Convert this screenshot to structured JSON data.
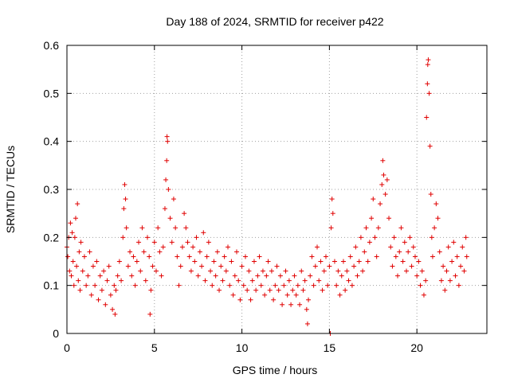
{
  "chart_data": {
    "type": "scatter",
    "title": "Day 188 of 2024, SRMTID for receiver p422",
    "xlabel": "GPS time / hours",
    "ylabel": "SRMTID / TECUs",
    "xlim": [
      0,
      24
    ],
    "ylim": [
      0,
      0.6
    ],
    "xticks": [
      0,
      5,
      10,
      15,
      20
    ],
    "yticks": [
      0,
      0.1,
      0.2,
      0.3,
      0.4,
      0.5,
      0.6
    ],
    "xtick_labels": [
      "0",
      "5",
      "10",
      "15",
      "20"
    ],
    "ytick_labels": [
      "0",
      "0.1",
      "0.2",
      "0.3",
      "0.4",
      "0.5",
      "0.6"
    ],
    "grid": true,
    "marker": "+",
    "color": "#e00000",
    "series": [
      {
        "name": "SRMTID",
        "points": [
          [
            0.0,
            0.18
          ],
          [
            0.05,
            0.16
          ],
          [
            0.1,
            0.2
          ],
          [
            0.15,
            0.13
          ],
          [
            0.2,
            0.23
          ],
          [
            0.25,
            0.12
          ],
          [
            0.3,
            0.21
          ],
          [
            0.35,
            0.15
          ],
          [
            0.4,
            0.1
          ],
          [
            0.45,
            0.2
          ],
          [
            0.5,
            0.24
          ],
          [
            0.55,
            0.14
          ],
          [
            0.6,
            0.27
          ],
          [
            0.65,
            0.11
          ],
          [
            0.7,
            0.17
          ],
          [
            0.75,
            0.09
          ],
          [
            0.8,
            0.19
          ],
          [
            0.9,
            0.13
          ],
          [
            1.0,
            0.16
          ],
          [
            1.1,
            0.1
          ],
          [
            1.2,
            0.12
          ],
          [
            1.3,
            0.17
          ],
          [
            1.4,
            0.08
          ],
          [
            1.5,
            0.14
          ],
          [
            1.6,
            0.1
          ],
          [
            1.7,
            0.15
          ],
          [
            1.8,
            0.07
          ],
          [
            1.9,
            0.12
          ],
          [
            2.0,
            0.09
          ],
          [
            2.1,
            0.13
          ],
          [
            2.2,
            0.06
          ],
          [
            2.3,
            0.11
          ],
          [
            2.4,
            0.14
          ],
          [
            2.5,
            0.08
          ],
          [
            2.6,
            0.05
          ],
          [
            2.7,
            0.1
          ],
          [
            2.75,
            0.04
          ],
          [
            2.8,
            0.09
          ],
          [
            2.9,
            0.12
          ],
          [
            3.0,
            0.15
          ],
          [
            3.1,
            0.11
          ],
          [
            3.2,
            0.2
          ],
          [
            3.25,
            0.26
          ],
          [
            3.3,
            0.31
          ],
          [
            3.35,
            0.28
          ],
          [
            3.4,
            0.22
          ],
          [
            3.5,
            0.14
          ],
          [
            3.6,
            0.17
          ],
          [
            3.7,
            0.12
          ],
          [
            3.8,
            0.16
          ],
          [
            3.9,
            0.1
          ],
          [
            4.0,
            0.15
          ],
          [
            4.1,
            0.19
          ],
          [
            4.2,
            0.13
          ],
          [
            4.3,
            0.22
          ],
          [
            4.4,
            0.17
          ],
          [
            4.5,
            0.11
          ],
          [
            4.6,
            0.2
          ],
          [
            4.7,
            0.16
          ],
          [
            4.75,
            0.04
          ],
          [
            4.8,
            0.09
          ],
          [
            4.9,
            0.14
          ],
          [
            5.0,
            0.19
          ],
          [
            5.1,
            0.13
          ],
          [
            5.2,
            0.22
          ],
          [
            5.3,
            0.17
          ],
          [
            5.4,
            0.12
          ],
          [
            5.5,
            0.18
          ],
          [
            5.6,
            0.26
          ],
          [
            5.65,
            0.32
          ],
          [
            5.7,
            0.36
          ],
          [
            5.72,
            0.41
          ],
          [
            5.75,
            0.4
          ],
          [
            5.8,
            0.3
          ],
          [
            5.9,
            0.24
          ],
          [
            6.0,
            0.19
          ],
          [
            6.1,
            0.28
          ],
          [
            6.2,
            0.22
          ],
          [
            6.3,
            0.16
          ],
          [
            6.4,
            0.1
          ],
          [
            6.5,
            0.14
          ],
          [
            6.6,
            0.18
          ],
          [
            6.7,
            0.25
          ],
          [
            6.8,
            0.22
          ],
          [
            6.9,
            0.19
          ],
          [
            7.0,
            0.16
          ],
          [
            7.1,
            0.13
          ],
          [
            7.2,
            0.18
          ],
          [
            7.3,
            0.15
          ],
          [
            7.4,
            0.2
          ],
          [
            7.5,
            0.12
          ],
          [
            7.6,
            0.17
          ],
          [
            7.7,
            0.14
          ],
          [
            7.8,
            0.21
          ],
          [
            7.9,
            0.11
          ],
          [
            8.0,
            0.16
          ],
          [
            8.1,
            0.19
          ],
          [
            8.2,
            0.13
          ],
          [
            8.3,
            0.1
          ],
          [
            8.4,
            0.15
          ],
          [
            8.5,
            0.12
          ],
          [
            8.6,
            0.17
          ],
          [
            8.7,
            0.09
          ],
          [
            8.8,
            0.14
          ],
          [
            8.9,
            0.11
          ],
          [
            9.0,
            0.16
          ],
          [
            9.1,
            0.13
          ],
          [
            9.2,
            0.18
          ],
          [
            9.3,
            0.1
          ],
          [
            9.4,
            0.15
          ],
          [
            9.5,
            0.08
          ],
          [
            9.6,
            0.12
          ],
          [
            9.7,
            0.17
          ],
          [
            9.8,
            0.11
          ],
          [
            9.9,
            0.07
          ],
          [
            10.0,
            0.14
          ],
          [
            10.1,
            0.1
          ],
          [
            10.2,
            0.16
          ],
          [
            10.3,
            0.09
          ],
          [
            10.4,
            0.13
          ],
          [
            10.5,
            0.07
          ],
          [
            10.6,
            0.11
          ],
          [
            10.7,
            0.15
          ],
          [
            10.8,
            0.09
          ],
          [
            10.9,
            0.12
          ],
          [
            11.0,
            0.16
          ],
          [
            11.1,
            0.1
          ],
          [
            11.2,
            0.13
          ],
          [
            11.3,
            0.08
          ],
          [
            11.4,
            0.12
          ],
          [
            11.5,
            0.15
          ],
          [
            11.6,
            0.09
          ],
          [
            11.7,
            0.13
          ],
          [
            11.8,
            0.07
          ],
          [
            11.9,
            0.1
          ],
          [
            12.0,
            0.14
          ],
          [
            12.1,
            0.09
          ],
          [
            12.2,
            0.12
          ],
          [
            12.3,
            0.06
          ],
          [
            12.4,
            0.1
          ],
          [
            12.5,
            0.13
          ],
          [
            12.6,
            0.08
          ],
          [
            12.7,
            0.11
          ],
          [
            12.8,
            0.06
          ],
          [
            12.9,
            0.09
          ],
          [
            13.0,
            0.12
          ],
          [
            13.1,
            0.08
          ],
          [
            13.2,
            0.1
          ],
          [
            13.3,
            0.06
          ],
          [
            13.4,
            0.13
          ],
          [
            13.5,
            0.09
          ],
          [
            13.6,
            0.11
          ],
          [
            13.7,
            0.05
          ],
          [
            13.75,
            0.02
          ],
          [
            13.8,
            0.07
          ],
          [
            13.9,
            0.12
          ],
          [
            14.0,
            0.16
          ],
          [
            14.1,
            0.1
          ],
          [
            14.2,
            0.14
          ],
          [
            14.3,
            0.18
          ],
          [
            14.4,
            0.11
          ],
          [
            14.5,
            0.15
          ],
          [
            14.6,
            0.09
          ],
          [
            14.7,
            0.13
          ],
          [
            14.8,
            0.16
          ],
          [
            14.9,
            0.1
          ],
          [
            15.0,
            0.14
          ],
          [
            15.05,
            0.0
          ],
          [
            15.1,
            0.22
          ],
          [
            15.15,
            0.28
          ],
          [
            15.2,
            0.25
          ],
          [
            15.3,
            0.15
          ],
          [
            15.4,
            0.1
          ],
          [
            15.5,
            0.13
          ],
          [
            15.6,
            0.08
          ],
          [
            15.7,
            0.12
          ],
          [
            15.8,
            0.15
          ],
          [
            15.9,
            0.09
          ],
          [
            16.0,
            0.13
          ],
          [
            16.1,
            0.11
          ],
          [
            16.2,
            0.16
          ],
          [
            16.3,
            0.1
          ],
          [
            16.4,
            0.14
          ],
          [
            16.5,
            0.18
          ],
          [
            16.6,
            0.12
          ],
          [
            16.7,
            0.15
          ],
          [
            16.8,
            0.2
          ],
          [
            16.9,
            0.13
          ],
          [
            17.0,
            0.17
          ],
          [
            17.1,
            0.22
          ],
          [
            17.2,
            0.15
          ],
          [
            17.3,
            0.19
          ],
          [
            17.4,
            0.24
          ],
          [
            17.5,
            0.28
          ],
          [
            17.6,
            0.2
          ],
          [
            17.7,
            0.16
          ],
          [
            17.8,
            0.22
          ],
          [
            17.9,
            0.27
          ],
          [
            18.0,
            0.31
          ],
          [
            18.05,
            0.36
          ],
          [
            18.1,
            0.33
          ],
          [
            18.2,
            0.29
          ],
          [
            18.3,
            0.32
          ],
          [
            18.4,
            0.24
          ],
          [
            18.5,
            0.18
          ],
          [
            18.6,
            0.14
          ],
          [
            18.7,
            0.2
          ],
          [
            18.8,
            0.16
          ],
          [
            18.9,
            0.12
          ],
          [
            19.0,
            0.17
          ],
          [
            19.1,
            0.22
          ],
          [
            19.2,
            0.15
          ],
          [
            19.3,
            0.19
          ],
          [
            19.4,
            0.13
          ],
          [
            19.5,
            0.17
          ],
          [
            19.6,
            0.2
          ],
          [
            19.7,
            0.14
          ],
          [
            19.8,
            0.18
          ],
          [
            19.9,
            0.16
          ],
          [
            20.0,
            0.12
          ],
          [
            20.1,
            0.15
          ],
          [
            20.2,
            0.1
          ],
          [
            20.3,
            0.13
          ],
          [
            20.4,
            0.08
          ],
          [
            20.5,
            0.11
          ],
          [
            20.55,
            0.45
          ],
          [
            20.6,
            0.52
          ],
          [
            20.62,
            0.56
          ],
          [
            20.65,
            0.57
          ],
          [
            20.7,
            0.5
          ],
          [
            20.75,
            0.39
          ],
          [
            20.8,
            0.29
          ],
          [
            20.85,
            0.2
          ],
          [
            20.9,
            0.16
          ],
          [
            21.0,
            0.22
          ],
          [
            21.1,
            0.27
          ],
          [
            21.2,
            0.24
          ],
          [
            21.3,
            0.17
          ],
          [
            21.4,
            0.11
          ],
          [
            21.5,
            0.14
          ],
          [
            21.6,
            0.09
          ],
          [
            21.7,
            0.13
          ],
          [
            21.8,
            0.18
          ],
          [
            21.9,
            0.11
          ],
          [
            22.0,
            0.15
          ],
          [
            22.1,
            0.19
          ],
          [
            22.2,
            0.12
          ],
          [
            22.3,
            0.16
          ],
          [
            22.4,
            0.1
          ],
          [
            22.5,
            0.14
          ],
          [
            22.6,
            0.18
          ],
          [
            22.7,
            0.13
          ],
          [
            22.8,
            0.2
          ],
          [
            22.85,
            0.16
          ]
        ]
      }
    ]
  }
}
